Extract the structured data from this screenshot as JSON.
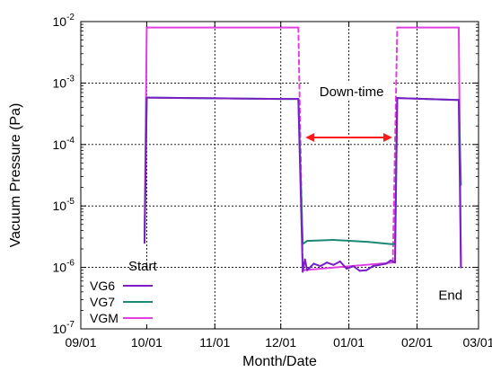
{
  "chart_data": {
    "type": "line",
    "title": "",
    "xlabel": "Month/Date",
    "ylabel": "Vacuum Pressure (Pa)",
    "y_scale": "log",
    "ylim": [
      1e-07,
      0.01
    ],
    "xlim": [
      "2020-09-01",
      "2021-03-01"
    ],
    "grid": true,
    "legend_position": "bottom-left",
    "x_ticks": [
      {
        "date": "2020-09-01",
        "label": "09/01"
      },
      {
        "date": "2020-10-01",
        "label": "10/01"
      },
      {
        "date": "2020-11-01",
        "label": "11/01"
      },
      {
        "date": "2020-12-01",
        "label": "12/01"
      },
      {
        "date": "2021-01-01",
        "label": "01/01"
      },
      {
        "date": "2021-02-01",
        "label": "02/01"
      },
      {
        "date": "2021-03-01",
        "label": "03/01"
      }
    ],
    "y_ticks": [
      {
        "value": 1e-07,
        "base": "10",
        "exp": "-7"
      },
      {
        "value": 1e-06,
        "base": "10",
        "exp": "-6"
      },
      {
        "value": 1e-05,
        "base": "10",
        "exp": "-5"
      },
      {
        "value": 0.0001,
        "base": "10",
        "exp": "-4"
      },
      {
        "value": 0.001,
        "base": "10",
        "exp": "-3"
      },
      {
        "value": 0.01,
        "base": "10",
        "exp": "-2"
      }
    ],
    "series": [
      {
        "name": "VGM",
        "color": "#e040e0",
        "dash": "dashed-in-gaps",
        "points": [
          {
            "x": "2020-09-30",
            "y": 2.6e-06
          },
          {
            "x": "2020-10-01",
            "y": 0.008
          },
          {
            "x": "2020-12-09",
            "y": 0.008
          },
          {
            "x": "2020-12-11",
            "y": 9e-07
          },
          {
            "x": "2021-01-21",
            "y": 1.2e-06
          },
          {
            "x": "2021-01-23",
            "y": 0.008
          },
          {
            "x": "2021-02-20",
            "y": 0.008
          },
          {
            "x": "2021-02-21",
            "y": 1e-06
          }
        ]
      },
      {
        "name": "VG7",
        "color": "#1b8a74",
        "points": [
          {
            "x": "2020-09-30",
            "y": 2.6e-06
          },
          {
            "x": "2020-10-01",
            "y": 0.00058
          },
          {
            "x": "2020-10-20",
            "y": 0.00057
          },
          {
            "x": "2020-11-10",
            "y": 0.00056
          },
          {
            "x": "2020-12-01",
            "y": 0.00055
          },
          {
            "x": "2020-12-09",
            "y": 0.00055
          },
          {
            "x": "2020-12-11",
            "y": 2.4e-06
          },
          {
            "x": "2020-12-13",
            "y": 2.7e-06
          },
          {
            "x": "2020-12-25",
            "y": 2.8e-06
          },
          {
            "x": "2021-01-10",
            "y": 2.6e-06
          },
          {
            "x": "2021-01-20",
            "y": 2.4e-06
          },
          {
            "x": "2021-01-22",
            "y": 2.4e-06
          },
          {
            "x": "2021-01-23",
            "y": 0.00057
          },
          {
            "x": "2021-02-05",
            "y": 0.00055
          },
          {
            "x": "2021-02-20",
            "y": 0.00053
          },
          {
            "x": "2021-02-21",
            "y": 2.2e-05
          }
        ]
      },
      {
        "name": "VG6",
        "color": "#7a1fc6",
        "points": [
          {
            "x": "2020-09-30",
            "y": 2.5e-06
          },
          {
            "x": "2020-10-01",
            "y": 0.00058
          },
          {
            "x": "2020-10-20",
            "y": 0.00057
          },
          {
            "x": "2020-11-10",
            "y": 0.00056
          },
          {
            "x": "2020-12-01",
            "y": 0.00055
          },
          {
            "x": "2020-12-09",
            "y": 0.00055
          },
          {
            "x": "2020-12-11",
            "y": 8.5e-07
          },
          {
            "x": "2020-12-12",
            "y": 1.35e-06
          },
          {
            "x": "2020-12-13",
            "y": 9e-07
          },
          {
            "x": "2020-12-16",
            "y": 1.15e-06
          },
          {
            "x": "2020-12-19",
            "y": 1.05e-06
          },
          {
            "x": "2020-12-22",
            "y": 1.2e-06
          },
          {
            "x": "2020-12-25",
            "y": 1.1e-06
          },
          {
            "x": "2020-12-28",
            "y": 1.25e-06
          },
          {
            "x": "2020-12-31",
            "y": 9.5e-07
          },
          {
            "x": "2021-01-03",
            "y": 1.05e-06
          },
          {
            "x": "2021-01-06",
            "y": 8.8e-07
          },
          {
            "x": "2021-01-09",
            "y": 9e-07
          },
          {
            "x": "2021-01-12",
            "y": 1.05e-06
          },
          {
            "x": "2021-01-15",
            "y": 1.1e-06
          },
          {
            "x": "2021-01-18",
            "y": 1.15e-06
          },
          {
            "x": "2021-01-20",
            "y": 1.3e-06
          },
          {
            "x": "2021-01-22",
            "y": 1.2e-06
          },
          {
            "x": "2021-01-23",
            "y": 0.00057
          },
          {
            "x": "2021-02-05",
            "y": 0.00055
          },
          {
            "x": "2021-02-20",
            "y": 0.00053
          },
          {
            "x": "2021-02-21",
            "y": 1e-06
          }
        ]
      }
    ],
    "annotations": [
      {
        "text": "Start",
        "x": "2020-09-30",
        "y": 2e-06
      },
      {
        "text": "End",
        "x": "2021-02-21",
        "y": 6.5e-07
      },
      {
        "text": "Down-time",
        "x": "2021-01-01",
        "y": 0.0008
      }
    ],
    "downtime_arrow": {
      "from": "2020-12-11",
      "to": "2021-01-22",
      "y": 0.00013,
      "color": "#ff1a1a"
    }
  }
}
